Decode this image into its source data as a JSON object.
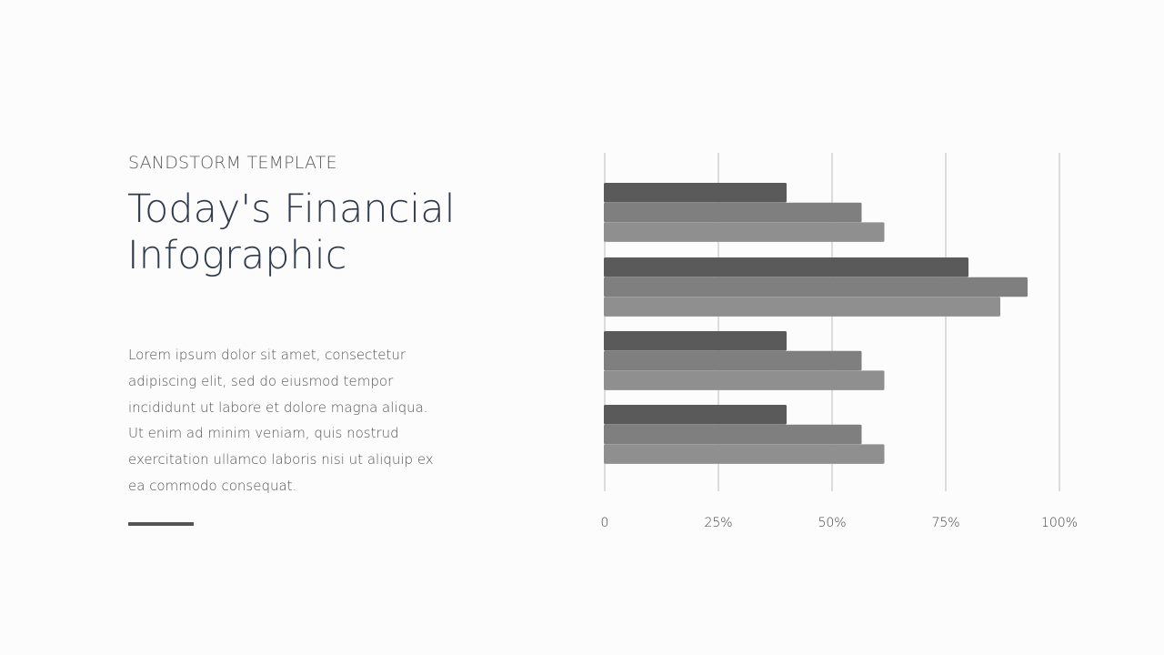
{
  "slide": {
    "subtitle": "SANDSTORM TEMPLATE",
    "title": "Today's Financial Infographic",
    "body": "Lorem ipsum dolor sit amet, consectetur adipiscing elit, sed do eiusmod tempor incididunt ut labore et dolore magna aliqua. Ut enim ad minim veniam, quis nostrud exercitation ullamco laboris nisi ut aliquip ex ea commodo consequat.",
    "accent_color": "#555555"
  },
  "chart_data": {
    "type": "bar",
    "orientation": "horizontal",
    "categories": [
      "",
      "",
      "",
      ""
    ],
    "series": [
      {
        "color": "#5a5a5a",
        "values": [
          40,
          80,
          40,
          40
        ]
      },
      {
        "color": "#7f7f7f",
        "values": [
          56.5,
          93,
          56.5,
          56.5
        ]
      },
      {
        "color": "#8f8f8f",
        "values": [
          61.5,
          87,
          61.5,
          61.5
        ]
      }
    ],
    "xlim": [
      0,
      100
    ],
    "xticks": [
      "0",
      "25%",
      "50%",
      "75%",
      "100%"
    ],
    "grid": true,
    "legend": "none"
  }
}
